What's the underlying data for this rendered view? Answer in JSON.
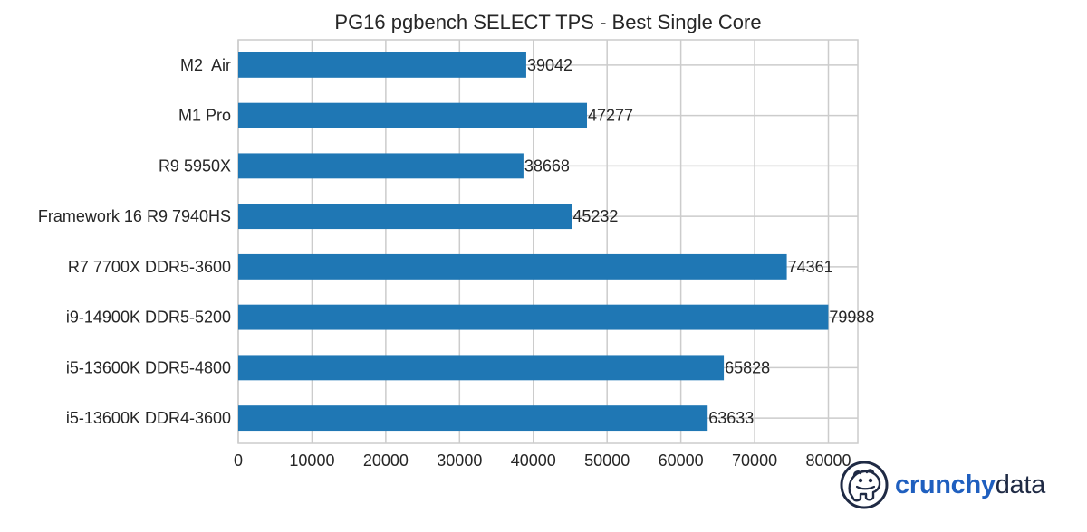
{
  "chart_data": {
    "type": "bar",
    "orientation": "horizontal",
    "title": "PG16 pgbench SELECT TPS - Best Single Core",
    "xlabel": "",
    "ylabel": "",
    "categories": [
      "M2  Air",
      "M1 Pro",
      "R9 5950X",
      "Framework 16 R9 7940HS",
      "R7 7700X DDR5-3600",
      "i9-14900K DDR5-5200",
      "i5-13600K DDR5-4800",
      "i5-13600K DDR4-3600"
    ],
    "values": [
      39042,
      47277,
      38668,
      45232,
      74361,
      79988,
      65828,
      63633
    ],
    "xlim": [
      0,
      84000
    ],
    "xticks": [
      0,
      10000,
      20000,
      30000,
      40000,
      50000,
      60000,
      70000,
      80000
    ],
    "grid": true,
    "legend": "none",
    "bar_color": "#1f77b4"
  },
  "logo": {
    "word1": "crunchy",
    "word2": "data",
    "word1_color": "#1f5fbf",
    "word2_color": "#1f2a44",
    "icon": "hippo-icon"
  }
}
